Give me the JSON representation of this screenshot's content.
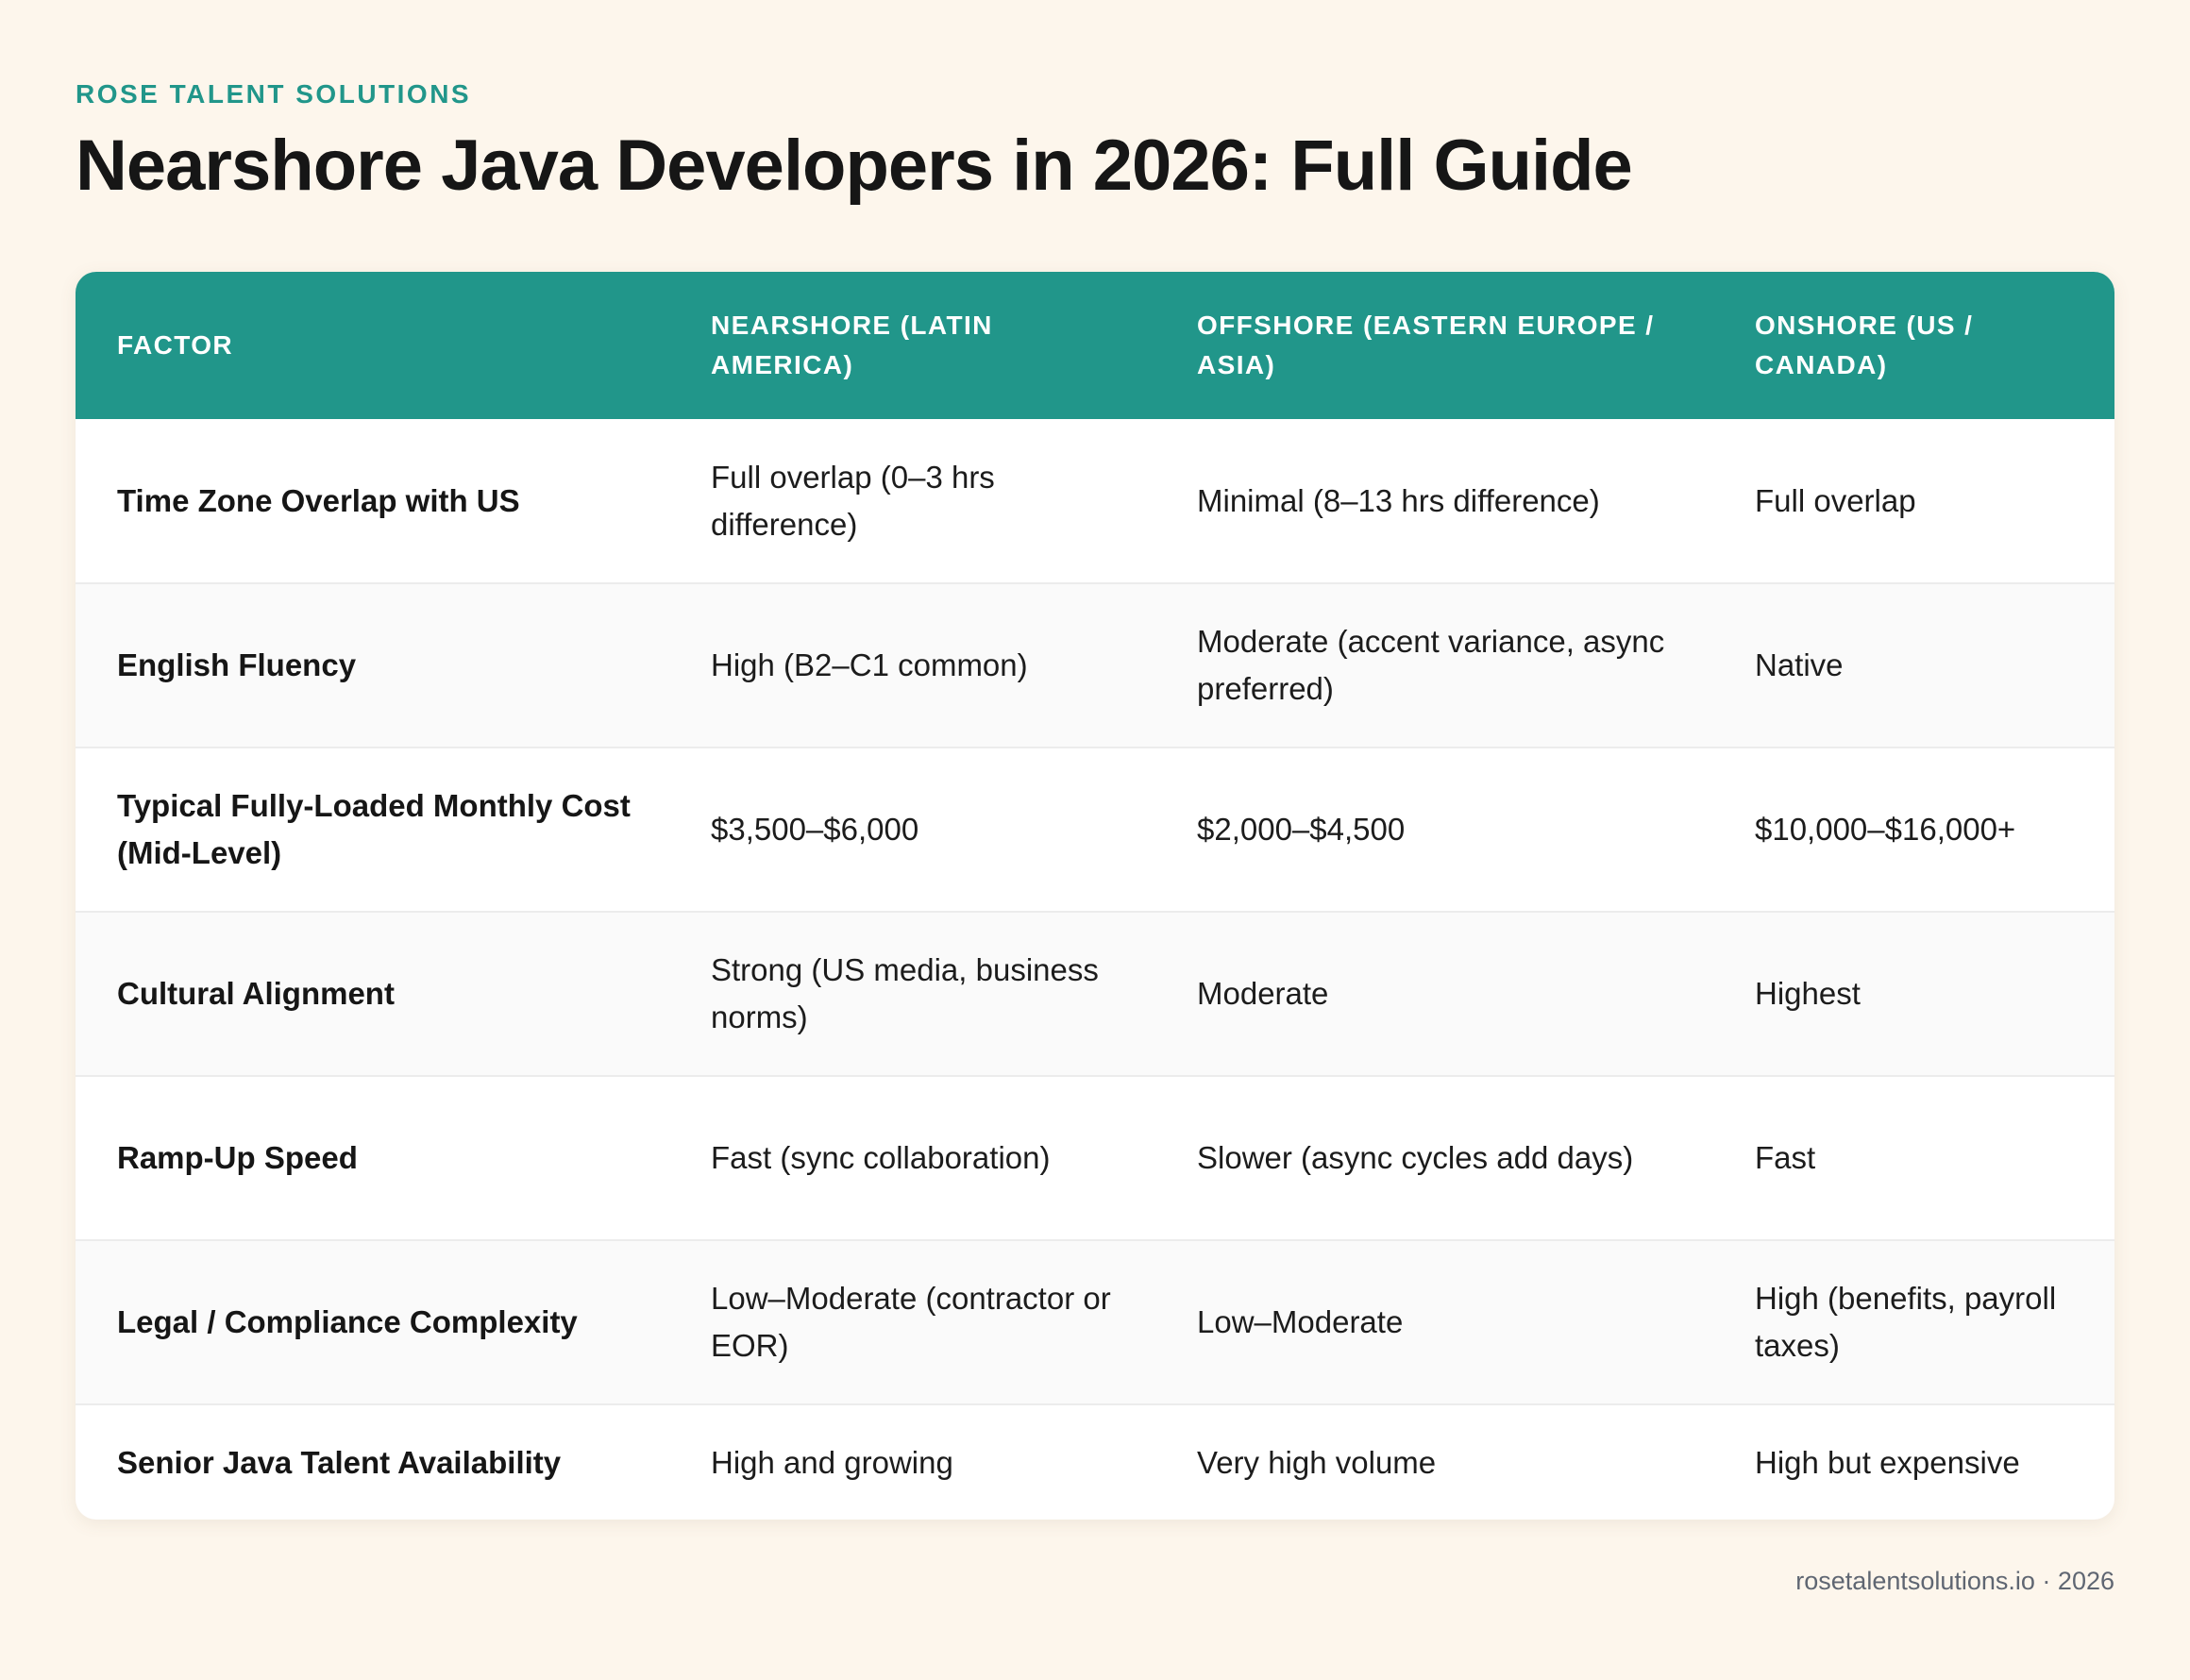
{
  "brand": "ROSE TALENT SOLUTIONS",
  "title": "Nearshore Java Developers in 2026: Full Guide",
  "table": {
    "headers": [
      "FACTOR",
      "NEARSHORE (LATIN AMERICA)",
      "OFFSHORE (EASTERN EUROPE / ASIA)",
      "ONSHORE (US / CANADA)"
    ],
    "rows": [
      [
        "Time Zone Overlap with US",
        "Full overlap (0–3 hrs difference)",
        "Minimal (8–13 hrs difference)",
        "Full overlap"
      ],
      [
        "English Fluency",
        "High (B2–C1 common)",
        "Moderate (accent variance, async preferred)",
        "Native"
      ],
      [
        "Typical Fully-Loaded Monthly Cost (Mid-Level)",
        "$3,500–$6,000",
        "$2,000–$4,500",
        "$10,000–$16,000+"
      ],
      [
        "Cultural Alignment",
        "Strong (US media, business norms)",
        "Moderate",
        "Highest"
      ],
      [
        "Ramp-Up Speed",
        "Fast (sync collaboration)",
        "Slower (async cycles add days)",
        "Fast"
      ],
      [
        "Legal / Compliance Complexity",
        "Low–Moderate (contractor or EOR)",
        "Low–Moderate",
        "High (benefits, payroll taxes)"
      ],
      [
        "Senior Java Talent Availability",
        "High and growing",
        "Very high volume",
        "High but expensive"
      ]
    ]
  },
  "footer": "rosetalentsolutions.io · 2026",
  "colors": {
    "background": "#fdf6ec",
    "accent": "#21968a",
    "header_text": "#ffffff",
    "body_text": "#1c1c1c",
    "footer_text": "#5f6672"
  }
}
